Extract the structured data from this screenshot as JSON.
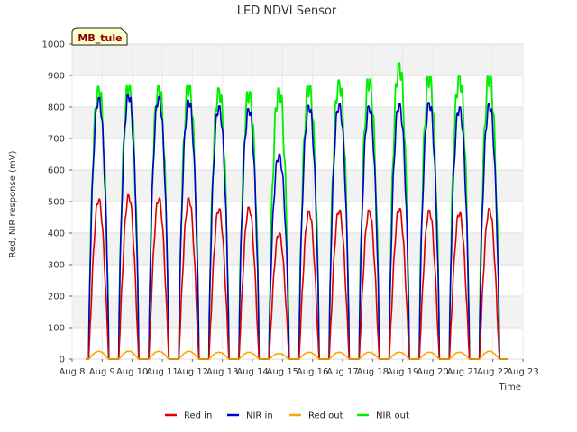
{
  "chart_data": {
    "type": "line",
    "title": "LED NDVI Sensor",
    "xlabel": "Time",
    "ylabel": "Red, NIR response (mV)",
    "badge": "MB_tule",
    "ylim": [
      0,
      1000
    ],
    "xlim": [
      0,
      15
    ],
    "yticks": [
      0,
      100,
      200,
      300,
      400,
      500,
      600,
      700,
      800,
      900,
      1000
    ],
    "xtick_labels": [
      "Aug 8",
      "Aug 9",
      "Aug 10",
      "Aug 11",
      "Aug 12",
      "Aug 13",
      "Aug 14",
      "Aug 15",
      "Aug 16",
      "Aug 17",
      "Aug 18",
      "Aug 19",
      "Aug 20",
      "Aug 21",
      "Aug 22",
      "Aug 23"
    ],
    "grid": true,
    "legend_position": "bottom",
    "day_start": 0.5,
    "day_end": 14.5,
    "series": [
      {
        "name": "Red in",
        "color": "#dd0000",
        "daily_peaks": [
          508,
          521,
          511,
          511,
          477,
          482,
          400,
          470,
          473,
          473,
          478,
          473,
          465,
          478
        ]
      },
      {
        "name": "NIR in",
        "color": "#0000cc",
        "daily_peaks": [
          830,
          840,
          833,
          822,
          803,
          795,
          650,
          805,
          810,
          803,
          810,
          815,
          800,
          810
        ]
      },
      {
        "name": "Red out",
        "color": "#ffa500",
        "daily_peaks": [
          25,
          25,
          25,
          25,
          22,
          22,
          18,
          22,
          22,
          22,
          22,
          22,
          22,
          25
        ]
      },
      {
        "name": "NIR out",
        "color": "#00ee00",
        "daily_peaks": [
          865,
          870,
          868,
          870,
          860,
          848,
          860,
          868,
          885,
          888,
          940,
          898,
          900,
          900
        ]
      }
    ]
  }
}
